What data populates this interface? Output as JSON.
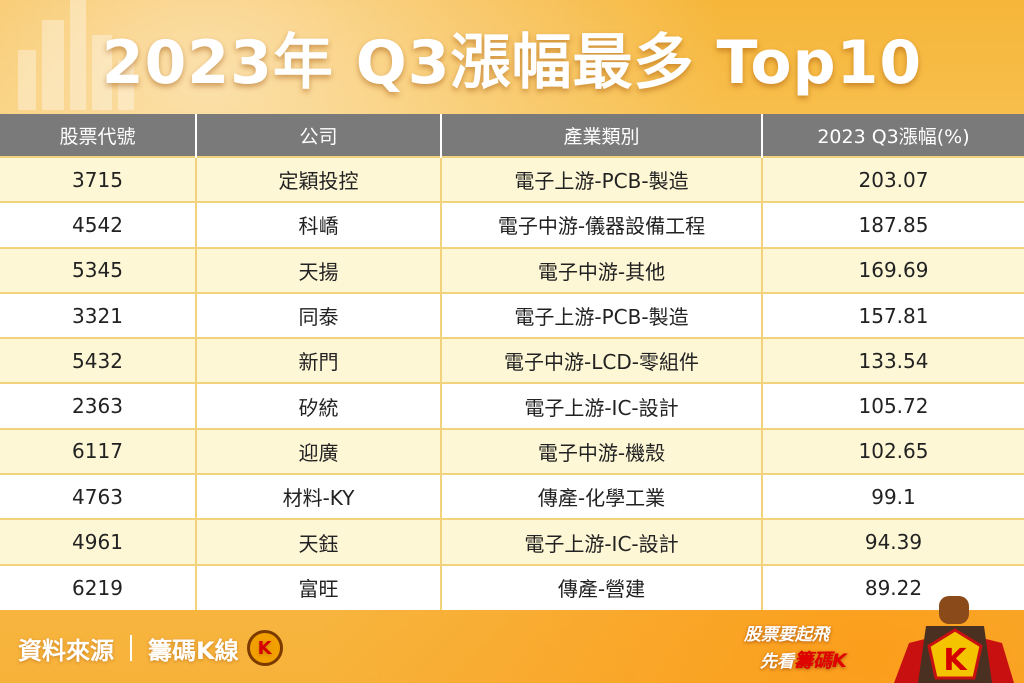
{
  "title": "2023年 Q3漲幅最多 Top10",
  "table": {
    "headers": [
      "股票代號",
      "公司",
      "產業類別",
      "2023 Q3漲幅(%)"
    ],
    "rows": [
      {
        "code": "3715",
        "company": "定穎投控",
        "industry": "電子上游-PCB-製造",
        "change": "203.07"
      },
      {
        "code": "4542",
        "company": "科嶠",
        "industry": "電子中游-儀器設備工程",
        "change": "187.85"
      },
      {
        "code": "5345",
        "company": "天揚",
        "industry": "電子中游-其他",
        "change": "169.69"
      },
      {
        "code": "3321",
        "company": "同泰",
        "industry": "電子上游-PCB-製造",
        "change": "157.81"
      },
      {
        "code": "5432",
        "company": "新門",
        "industry": "電子中游-LCD-零組件",
        "change": "133.54"
      },
      {
        "code": "2363",
        "company": "矽統",
        "industry": "電子上游-IC-設計",
        "change": "105.72"
      },
      {
        "code": "6117",
        "company": "迎廣",
        "industry": "電子中游-機殼",
        "change": "102.65"
      },
      {
        "code": "4763",
        "company": "材料-KY",
        "industry": "傳產-化學工業",
        "change": "99.1"
      },
      {
        "code": "4961",
        "company": "天鈺",
        "industry": "電子上游-IC-設計",
        "change": "94.39"
      },
      {
        "code": "6219",
        "company": "富旺",
        "industry": "傳產-營建",
        "change": "89.22"
      }
    ]
  },
  "footer": {
    "source_label": "資料來源",
    "source_name": "籌碼K線",
    "badge_letter": "K"
  },
  "slogan": {
    "line1": "股票要起飛",
    "line2_prefix": "先看",
    "line2_highlight": "籌碼K"
  },
  "mascot": {
    "letter": "K",
    "icon": "superhero-mascot-icon"
  },
  "colors": {
    "header_bg": "#7a7a7a",
    "row_odd": "#fdf7d6",
    "row_even": "#ffffff",
    "accent": "#f7b23a",
    "highlight_red": "#e00000"
  }
}
